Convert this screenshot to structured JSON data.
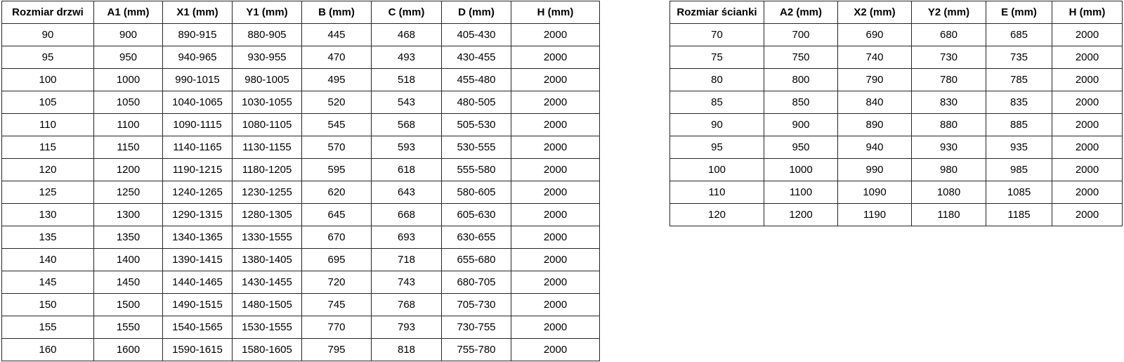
{
  "door_table": {
    "name": "door-size-table",
    "headers": [
      "Rozmiar drzwi",
      "A1 (mm)",
      "X1 (mm)",
      "Y1 (mm)",
      "B (mm)",
      "C (mm)",
      "D (mm)",
      "H (mm)"
    ],
    "rows": [
      [
        "90",
        "900",
        "890-915",
        "880-905",
        "445",
        "468",
        "405-430",
        "2000"
      ],
      [
        "95",
        "950",
        "940-965",
        "930-955",
        "470",
        "493",
        "430-455",
        "2000"
      ],
      [
        "100",
        "1000",
        "990-1015",
        "980-1005",
        "495",
        "518",
        "455-480",
        "2000"
      ],
      [
        "105",
        "1050",
        "1040-1065",
        "1030-1055",
        "520",
        "543",
        "480-505",
        "2000"
      ],
      [
        "110",
        "1100",
        "1090-1115",
        "1080-1105",
        "545",
        "568",
        "505-530",
        "2000"
      ],
      [
        "115",
        "1150",
        "1140-1165",
        "1130-1155",
        "570",
        "593",
        "530-555",
        "2000"
      ],
      [
        "120",
        "1200",
        "1190-1215",
        "1180-1205",
        "595",
        "618",
        "555-580",
        "2000"
      ],
      [
        "125",
        "1250",
        "1240-1265",
        "1230-1255",
        "620",
        "643",
        "580-605",
        "2000"
      ],
      [
        "130",
        "1300",
        "1290-1315",
        "1280-1305",
        "645",
        "668",
        "605-630",
        "2000"
      ],
      [
        "135",
        "1350",
        "1340-1365",
        "1330-1555",
        "670",
        "693",
        "630-655",
        "2000"
      ],
      [
        "140",
        "1400",
        "1390-1415",
        "1380-1405",
        "695",
        "718",
        "655-680",
        "2000"
      ],
      [
        "145",
        "1450",
        "1440-1465",
        "1430-1455",
        "720",
        "743",
        "680-705",
        "2000"
      ],
      [
        "150",
        "1500",
        "1490-1515",
        "1480-1505",
        "745",
        "768",
        "705-730",
        "2000"
      ],
      [
        "155",
        "1550",
        "1540-1565",
        "1530-1555",
        "770",
        "793",
        "730-755",
        "2000"
      ],
      [
        "160",
        "1600",
        "1590-1615",
        "1580-1605",
        "795",
        "818",
        "755-780",
        "2000"
      ]
    ]
  },
  "wall_table": {
    "name": "wall-size-table",
    "headers": [
      "Rozmiar ścianki",
      "A2 (mm)",
      "X2 (mm)",
      "Y2 (mm)",
      "E (mm)",
      "H (mm)"
    ],
    "rows": [
      [
        "70",
        "700",
        "690",
        "680",
        "685",
        "2000"
      ],
      [
        "75",
        "750",
        "740",
        "730",
        "735",
        "2000"
      ],
      [
        "80",
        "800",
        "790",
        "780",
        "785",
        "2000"
      ],
      [
        "85",
        "850",
        "840",
        "830",
        "835",
        "2000"
      ],
      [
        "90",
        "900",
        "890",
        "880",
        "885",
        "2000"
      ],
      [
        "95",
        "950",
        "940",
        "930",
        "935",
        "2000"
      ],
      [
        "100",
        "1000",
        "990",
        "980",
        "985",
        "2000"
      ],
      [
        "110",
        "1100",
        "1090",
        "1080",
        "1085",
        "2000"
      ],
      [
        "120",
        "1200",
        "1190",
        "1180",
        "1185",
        "2000"
      ]
    ]
  },
  "colors": {
    "background": "#ffffff",
    "border": "#262626",
    "text": "#000000"
  }
}
